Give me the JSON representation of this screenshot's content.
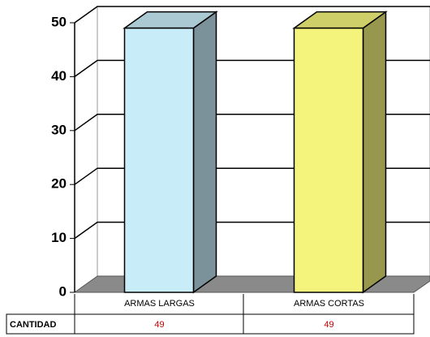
{
  "chart_data": {
    "type": "bar3d",
    "categories": [
      "ARMAS LARGAS",
      "ARMAS CORTAS"
    ],
    "series": [
      {
        "name": "CANTIDAD",
        "values": [
          49,
          49
        ]
      }
    ],
    "colors": [
      "#c8ecf8",
      "#f4f47c"
    ],
    "ylim": [
      0,
      50
    ],
    "yticks": [
      0,
      10,
      20,
      30,
      40,
      50
    ],
    "grid": true
  }
}
